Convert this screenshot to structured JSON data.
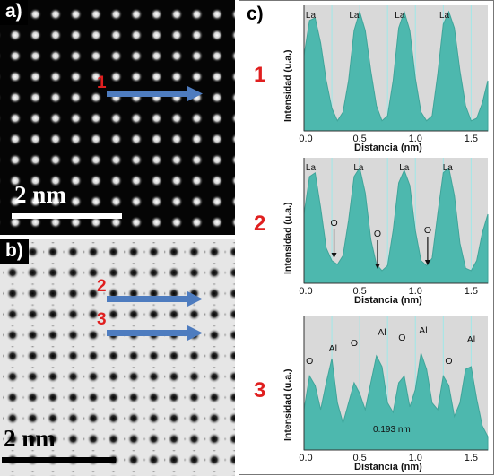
{
  "panel_a": {
    "label": "a)",
    "arrow_label": "1",
    "scale_bar": "2 nm"
  },
  "panel_b": {
    "label": "b)",
    "arrow_labels": [
      "2",
      "3"
    ],
    "scale_bar": "2 nm"
  },
  "panel_c": {
    "label": "c)"
  },
  "colors": {
    "fill": "#4db8ae",
    "line": "#3fa59a",
    "plot_bg": "#d9d9d9",
    "grid": "#9fe8e8",
    "arrow": "#4e7cbf",
    "red": "#e01f1f"
  },
  "chart_data": [
    {
      "type": "area",
      "row_label": "1",
      "xlabel": "Distancia (nm)",
      "ylabel": "Intensidad (u.a.)",
      "xlim": [
        0,
        1.65
      ],
      "x_ticks": [
        "0.0",
        "0.5",
        "1.0",
        "1.5"
      ],
      "annotations": [
        "La",
        "La",
        "La",
        "La"
      ],
      "annotation_x": [
        0.06,
        0.45,
        0.86,
        1.26
      ],
      "x": [
        0,
        0.05,
        0.1,
        0.15,
        0.2,
        0.25,
        0.3,
        0.35,
        0.4,
        0.45,
        0.5,
        0.55,
        0.6,
        0.65,
        0.7,
        0.75,
        0.8,
        0.85,
        0.9,
        0.95,
        1.0,
        1.05,
        1.1,
        1.15,
        1.2,
        1.25,
        1.3,
        1.35,
        1.4,
        1.45,
        1.5,
        1.55,
        1.6,
        1.65
      ],
      "values": [
        0.6,
        0.88,
        0.9,
        0.7,
        0.4,
        0.18,
        0.08,
        0.15,
        0.4,
        0.8,
        0.95,
        0.8,
        0.48,
        0.2,
        0.08,
        0.12,
        0.4,
        0.82,
        0.95,
        0.8,
        0.42,
        0.15,
        0.08,
        0.12,
        0.45,
        0.85,
        0.95,
        0.82,
        0.48,
        0.2,
        0.08,
        0.1,
        0.22,
        0.4
      ]
    },
    {
      "type": "area",
      "row_label": "2",
      "xlabel": "Distancia (nm)",
      "ylabel": "Intensidad (u.a.)",
      "xlim": [
        0,
        1.65
      ],
      "x_ticks": [
        "0.0",
        "0.5",
        "1.0",
        "1.5"
      ],
      "annotations": [
        "La",
        "La",
        "La",
        "La",
        "O",
        "O",
        "O"
      ],
      "annotation_x": [
        0.06,
        0.49,
        0.9,
        1.29,
        0.27,
        0.66,
        1.11
      ],
      "x": [
        0,
        0.05,
        0.1,
        0.15,
        0.2,
        0.25,
        0.3,
        0.35,
        0.4,
        0.45,
        0.5,
        0.55,
        0.6,
        0.65,
        0.7,
        0.75,
        0.8,
        0.85,
        0.9,
        0.95,
        1.0,
        1.05,
        1.1,
        1.15,
        1.2,
        1.25,
        1.3,
        1.35,
        1.4,
        1.45,
        1.5,
        1.55,
        1.6,
        1.65
      ],
      "values": [
        0.55,
        0.85,
        0.88,
        0.6,
        0.28,
        0.18,
        0.15,
        0.22,
        0.5,
        0.85,
        0.92,
        0.72,
        0.35,
        0.15,
        0.1,
        0.14,
        0.42,
        0.8,
        0.9,
        0.78,
        0.42,
        0.18,
        0.14,
        0.2,
        0.55,
        0.88,
        0.92,
        0.7,
        0.32,
        0.12,
        0.1,
        0.18,
        0.4,
        0.55
      ]
    },
    {
      "type": "area",
      "row_label": "3",
      "xlabel": "Distancia (nm)",
      "ylabel": "Intensidad (u.a.)",
      "xlim": [
        0,
        1.65
      ],
      "x_ticks": [
        "0.0",
        "0.5",
        "1.0",
        "1.5"
      ],
      "annotations": [
        "O",
        "Al",
        "O",
        "Al",
        "O",
        "Al",
        "O",
        "Al"
      ],
      "annotation_x": [
        0.05,
        0.26,
        0.45,
        0.7,
        0.88,
        1.07,
        1.3,
        1.5
      ],
      "measurement": "0.193 nm",
      "x": [
        0,
        0.05,
        0.1,
        0.15,
        0.2,
        0.25,
        0.3,
        0.35,
        0.4,
        0.45,
        0.5,
        0.55,
        0.6,
        0.65,
        0.7,
        0.75,
        0.8,
        0.85,
        0.9,
        0.95,
        1.0,
        1.05,
        1.1,
        1.15,
        1.2,
        1.25,
        1.3,
        1.35,
        1.4,
        1.45,
        1.5,
        1.55,
        1.6,
        1.65
      ],
      "values": [
        0.3,
        0.55,
        0.48,
        0.3,
        0.5,
        0.68,
        0.35,
        0.2,
        0.35,
        0.5,
        0.42,
        0.3,
        0.5,
        0.7,
        0.62,
        0.35,
        0.28,
        0.5,
        0.55,
        0.32,
        0.45,
        0.72,
        0.6,
        0.35,
        0.3,
        0.55,
        0.48,
        0.25,
        0.35,
        0.6,
        0.62,
        0.38,
        0.18,
        0.1
      ]
    }
  ]
}
